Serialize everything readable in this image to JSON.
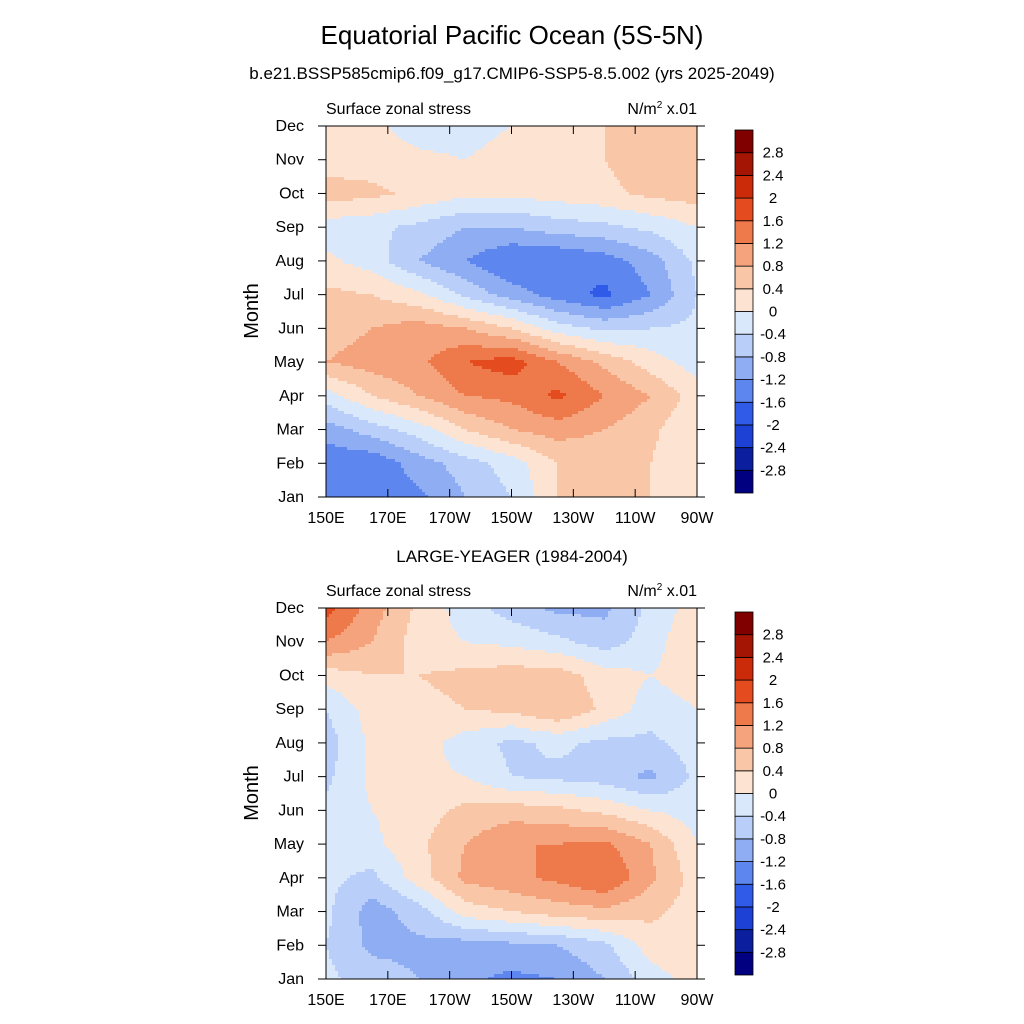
{
  "title": "Equatorial Pacific Ocean (5S-5N)",
  "subtitle": "b.e21.BSSP585cmip6.f09_g17.CMIP6-SSP5-8.5.002 (yrs 2025-2049)",
  "panels": [
    {
      "top_title": "",
      "left_label": "Surface zonal stress",
      "units_prefix": "N/m",
      "units_sup": "2",
      "units_suffix": " x.01",
      "ylabel": "Month"
    },
    {
      "top_title": "LARGE-YEAGER (1984-2004)",
      "left_label": "Surface zonal stress",
      "units_prefix": "N/m",
      "units_sup": "2",
      "units_suffix": " x.01",
      "ylabel": "Month"
    }
  ],
  "chart_data": [
    {
      "type": "heatmap",
      "title": "b.e21.BSSP585cmip6.f09_g17.CMIP6-SSP5-8.5.002 (yrs 2025-2049)",
      "xlabel": "",
      "ylabel": "Month",
      "x_ticks": [
        "150E",
        "170E",
        "170W",
        "150W",
        "130W",
        "110W",
        "90W"
      ],
      "y_ticks": [
        "Jan",
        "Feb",
        "Mar",
        "Apr",
        "May",
        "Jun",
        "Jul",
        "Aug",
        "Sep",
        "Oct",
        "Nov",
        "Dec"
      ],
      "x_range_deg_east": [
        150,
        270
      ],
      "colorbar_levels": [
        "-2.8",
        "-2.4",
        "-2",
        "-1.6",
        "-1.2",
        "-0.8",
        "-0.4",
        "0",
        "0.4",
        "0.8",
        "1.2",
        "1.6",
        "2",
        "2.4",
        "2.8"
      ],
      "colorbar_colors": [
        "#000080",
        "#0a1e9e",
        "#1d40d5",
        "#2f5be8",
        "#5e86ef",
        "#8fadf3",
        "#b9cef8",
        "#d9e8fb",
        "#fde4d2",
        "#f9c6a8",
        "#f5a37d",
        "#ee7a4c",
        "#e44c1f",
        "#cc2b0a",
        "#a51504",
        "#800000"
      ],
      "grid_x_deg_east": [
        150,
        165,
        180,
        195,
        210,
        225,
        240,
        255,
        270
      ],
      "grid_y_months": [
        "Jan",
        "Feb",
        "Mar",
        "Apr",
        "May",
        "Jun",
        "Jul",
        "Aug",
        "Sep",
        "Oct",
        "Nov",
        "Dec"
      ],
      "values": [
        [
          -1.2,
          -1.4,
          -1.3,
          -0.8,
          -0.4,
          0.4,
          0.4,
          0.4,
          0.0
        ],
        [
          -1.5,
          -1.5,
          -1.0,
          -0.6,
          -0.2,
          0.4,
          0.5,
          0.4,
          0.0
        ],
        [
          -1.0,
          -0.6,
          -0.2,
          0.4,
          0.8,
          1.0,
          0.8,
          0.5,
          0.0
        ],
        [
          -0.2,
          0.4,
          0.8,
          1.2,
          1.3,
          1.7,
          1.2,
          0.8,
          0.2
        ],
        [
          0.8,
          1.0,
          1.1,
          1.6,
          1.8,
          1.2,
          0.7,
          0.2,
          -0.2
        ],
        [
          0.6,
          0.8,
          1.0,
          0.8,
          0.4,
          -0.2,
          -0.5,
          -0.4,
          -0.3
        ],
        [
          0.5,
          0.4,
          0.1,
          -0.5,
          -1.0,
          -1.4,
          -1.7,
          -1.2,
          -0.4
        ],
        [
          0.1,
          -0.2,
          -0.8,
          -1.2,
          -1.6,
          -1.6,
          -1.4,
          -1.0,
          -0.3
        ],
        [
          -0.2,
          -0.3,
          -0.5,
          -0.8,
          -0.8,
          -0.6,
          -0.5,
          -0.3,
          0.0
        ],
        [
          0.6,
          0.5,
          0.3,
          0.1,
          0.1,
          0.2,
          0.3,
          0.5,
          0.6
        ],
        [
          0.2,
          0.2,
          0.1,
          0.0,
          0.2,
          0.3,
          0.4,
          0.6,
          0.7
        ],
        [
          0.2,
          0.1,
          -0.2,
          -0.2,
          0.0,
          0.3,
          0.4,
          0.6,
          0.7
        ]
      ]
    },
    {
      "type": "heatmap",
      "title": "LARGE-YEAGER (1984-2004)",
      "xlabel": "",
      "ylabel": "Month",
      "x_ticks": [
        "150E",
        "170E",
        "170W",
        "150W",
        "130W",
        "110W",
        "90W"
      ],
      "y_ticks": [
        "Jan",
        "Feb",
        "Mar",
        "Apr",
        "May",
        "Jun",
        "Jul",
        "Aug",
        "Sep",
        "Oct",
        "Nov",
        "Dec"
      ],
      "x_range_deg_east": [
        150,
        270
      ],
      "colorbar_levels": [
        "-2.8",
        "-2.4",
        "-2",
        "-1.6",
        "-1.2",
        "-0.8",
        "-0.4",
        "0",
        "0.4",
        "0.8",
        "1.2",
        "1.6",
        "2",
        "2.4",
        "2.8"
      ],
      "colorbar_colors": [
        "#000080",
        "#0a1e9e",
        "#1d40d5",
        "#2f5be8",
        "#5e86ef",
        "#8fadf3",
        "#b9cef8",
        "#d9e8fb",
        "#fde4d2",
        "#f9c6a8",
        "#f5a37d",
        "#ee7a4c",
        "#e44c1f",
        "#cc2b0a",
        "#a51504",
        "#800000"
      ],
      "grid_x_deg_east": [
        150,
        165,
        180,
        195,
        210,
        225,
        240,
        255,
        270
      ],
      "grid_y_months": [
        "Jan",
        "Feb",
        "Mar",
        "Apr",
        "May",
        "Jun",
        "Jul",
        "Aug",
        "Sep",
        "Oct",
        "Nov",
        "Dec"
      ],
      "values": [
        [
          -0.3,
          -0.6,
          -0.8,
          -1.1,
          -1.3,
          -1.2,
          -0.8,
          -0.2,
          0.2
        ],
        [
          -0.4,
          -0.9,
          -0.9,
          -1.0,
          -0.9,
          -0.8,
          -0.5,
          0.2,
          0.3
        ],
        [
          -0.3,
          -1.0,
          -0.6,
          0.2,
          0.4,
          0.6,
          0.7,
          0.5,
          0.2
        ],
        [
          -0.3,
          -0.5,
          0.2,
          0.9,
          1.1,
          1.3,
          1.6,
          0.9,
          0.2
        ],
        [
          -0.4,
          -0.1,
          0.3,
          0.8,
          1.2,
          1.2,
          1.3,
          0.8,
          0.0
        ],
        [
          -0.3,
          0.0,
          0.2,
          0.5,
          0.6,
          0.5,
          0.3,
          0.0,
          -0.2
        ],
        [
          -0.5,
          0.1,
          0.1,
          0.0,
          -0.4,
          -0.5,
          -0.6,
          -0.9,
          -0.3
        ],
        [
          -0.6,
          0.1,
          0.2,
          -0.2,
          -0.5,
          -0.3,
          -0.5,
          -0.5,
          -0.2
        ],
        [
          -0.4,
          0.2,
          0.3,
          0.4,
          0.5,
          0.8,
          0.3,
          -0.2,
          0.0
        ],
        [
          0.2,
          0.4,
          0.4,
          0.5,
          0.6,
          0.6,
          0.2,
          0.0,
          0.2
        ],
        [
          1.2,
          0.8,
          0.2,
          0.0,
          -0.1,
          -0.3,
          -0.6,
          -0.2,
          0.4
        ],
        [
          1.8,
          1.0,
          0.3,
          -0.2,
          -0.6,
          -0.9,
          -0.9,
          -0.3,
          0.2
        ]
      ]
    }
  ]
}
